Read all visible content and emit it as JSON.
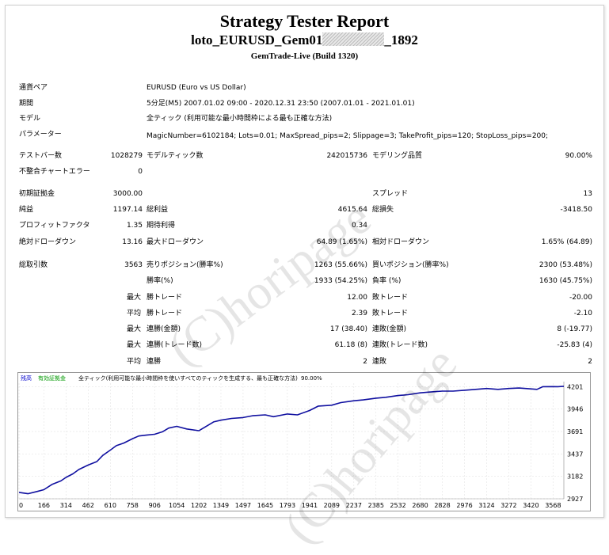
{
  "header": {
    "title": "Strategy Tester Report",
    "subtitle_left": "loto_EURUSD_Gem01",
    "subtitle_right": "_1892",
    "build": "GemTrade-Live (Build 1320)"
  },
  "info": {
    "pair_label": "通貨ペア",
    "pair_value": "EURUSD (Euro vs US Dollar)",
    "period_label": "期間",
    "period_value": "5分足(M5) 2007.01.02 09:00 - 2020.12.31 23:50 (2007.01.01 - 2021.01.01)",
    "model_label": "モデル",
    "model_value": "全ティック (利用可能な最小時間枠による最も正確な方法)",
    "params_label": "パラメーター",
    "params_value": "MagicNumber=6102184; Lots=0.01; MaxSpread_pips=2; Slippage=3; TakeProfit_pips=120; StopLoss_pips=200;"
  },
  "stats": {
    "bars_label": "テストバー数",
    "bars_value": "1028279",
    "ticks_label": "モデルティック数",
    "ticks_value": "242015736",
    "quality_label": "モデリング品質",
    "quality_value": "90.00%",
    "mismatch_label": "不整合チャートエラー",
    "mismatch_value": "0",
    "deposit_label": "初期証拠金",
    "deposit_value": "3000.00",
    "spread_label": "スプレッド",
    "spread_value": "13",
    "net_label": "純益",
    "net_value": "1197.14",
    "gross_profit_label": "総利益",
    "gross_profit_value": "4615.64",
    "gross_loss_label": "総損失",
    "gross_loss_value": "-3418.50",
    "pf_label": "プロフィットファクタ",
    "pf_value": "1.35",
    "expected_label": "期待利得",
    "expected_value": "0.34",
    "abs_dd_label": "絶対ドローダウン",
    "abs_dd_value": "13.16",
    "max_dd_label": "最大ドローダウン",
    "max_dd_value": "64.89 (1.65%)",
    "rel_dd_label": "相対ドローダウン",
    "rel_dd_value": "1.65% (64.89)",
    "trades_label": "総取引数",
    "trades_value": "3563",
    "short_label": "売りポジション(勝率%)",
    "short_value": "1263 (55.66%)",
    "long_label": "買いポジション(勝率%)",
    "long_value": "2300 (53.48%)",
    "win_label": "勝率(%)",
    "win_value": "1933 (54.25%)",
    "loss_label": "負率 (%)",
    "loss_value": "1630 (45.75%)",
    "max_word": "最大",
    "avg_word": "平均",
    "best_label": "勝トレード",
    "best_value": "12.00",
    "worst_label": "敗トレード",
    "worst_value": "-20.00",
    "avg_win_label": "勝トレード",
    "avg_win_value": "2.39",
    "avg_loss_label": "敗トレード",
    "avg_loss_value": "-2.10",
    "cons_win_amt_label": "連勝(金額)",
    "cons_win_amt_value": "17 (38.40)",
    "cons_loss_amt_label": "連敗(金額)",
    "cons_loss_amt_value": "8 (-19.77)",
    "cons_win_cnt_label": "連勝(トレード数)",
    "cons_win_cnt_value": "61.18 (8)",
    "cons_loss_cnt_label": "連敗(トレード数)",
    "cons_loss_cnt_value": "-25.83 (4)",
    "avg_cons_win_label": "連勝",
    "avg_cons_win_value": "2",
    "avg_cons_loss_label": "連敗",
    "avg_cons_loss_value": "2"
  },
  "watermark": "(C)horipage",
  "colors": {
    "line": "#1010a0",
    "legend_balance": "#0000cc",
    "legend_equity": "#009900"
  },
  "chart_data": {
    "type": "line",
    "legend": [
      "残高",
      "有効証拠金",
      "全ティック(利用可能な最小時間枠を使いすべてのティックを生成する、最も正確な方法)",
      "90.00%"
    ],
    "xticks": [
      0,
      166,
      314,
      462,
      610,
      758,
      906,
      1054,
      1202,
      1349,
      1497,
      1645,
      1793,
      1941,
      2089,
      2237,
      2385,
      2532,
      2680,
      2828,
      2976,
      3124,
      3272,
      3420,
      3568
    ],
    "yticks": [
      4201,
      3946,
      3691,
      3437,
      3182,
      2927
    ],
    "xlim": [
      0,
      3640
    ],
    "ylim": [
      2927,
      4240
    ],
    "x": [
      0,
      60,
      120,
      166,
      220,
      280,
      314,
      360,
      400,
      462,
      520,
      560,
      610,
      650,
      700,
      758,
      800,
      850,
      906,
      960,
      1000,
      1054,
      1120,
      1202,
      1260,
      1300,
      1349,
      1420,
      1497,
      1560,
      1645,
      1700,
      1793,
      1860,
      1941,
      2000,
      2089,
      2150,
      2237,
      2300,
      2385,
      2450,
      2532,
      2600,
      2680,
      2750,
      2828,
      2900,
      2976,
      3050,
      3124,
      3200,
      3272,
      3340,
      3420,
      3460,
      3500,
      3568,
      3600,
      3640
    ],
    "values": [
      3000,
      2985,
      3010,
      3030,
      3090,
      3130,
      3170,
      3210,
      3260,
      3310,
      3350,
      3420,
      3480,
      3530,
      3560,
      3610,
      3640,
      3650,
      3660,
      3690,
      3730,
      3750,
      3720,
      3700,
      3760,
      3800,
      3820,
      3840,
      3850,
      3870,
      3880,
      3860,
      3890,
      3880,
      3930,
      3980,
      3990,
      4020,
      4040,
      4050,
      4070,
      4080,
      4100,
      4110,
      4130,
      4140,
      4150,
      4150,
      4160,
      4170,
      4180,
      4170,
      4180,
      4185,
      4175,
      4170,
      4200,
      4201,
      4200,
      4205
    ]
  }
}
